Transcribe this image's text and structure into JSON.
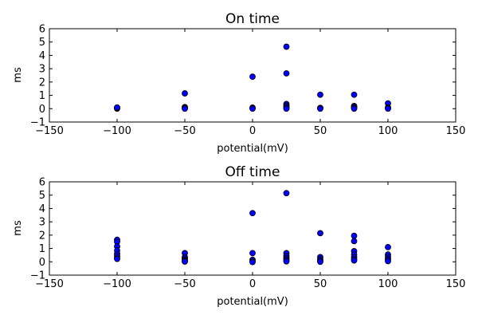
{
  "chart_data": [
    {
      "type": "scatter",
      "title": "On time",
      "xlabel": "potential(mV)",
      "ylabel": "ms",
      "xlim": [
        -150,
        150
      ],
      "ylim": [
        -1,
        6
      ],
      "xticks": [
        -150,
        -100,
        -50,
        0,
        50,
        100,
        150
      ],
      "yticks": [
        -1,
        0,
        1,
        2,
        3,
        4,
        5,
        6
      ],
      "xtick_labels": [
        "−150",
        "−100",
        "−50",
        "0",
        "50",
        "100",
        "150"
      ],
      "ytick_labels": [
        "−1",
        "0",
        "1",
        "2",
        "3",
        "4",
        "5",
        "6"
      ],
      "grid": false,
      "marker_color": "#0000ff",
      "points": [
        {
          "x": -100,
          "y": 0.0
        },
        {
          "x": -100,
          "y": 0.03
        },
        {
          "x": -100,
          "y": 0.06
        },
        {
          "x": -100,
          "y": 0.09
        },
        {
          "x": -50,
          "y": 1.15
        },
        {
          "x": -50,
          "y": 0.12
        },
        {
          "x": -50,
          "y": 0.08
        },
        {
          "x": -50,
          "y": 0.04
        },
        {
          "x": -50,
          "y": 0.0
        },
        {
          "x": 0,
          "y": 2.4
        },
        {
          "x": 0,
          "y": 0.08
        },
        {
          "x": 0,
          "y": 0.04
        },
        {
          "x": 0,
          "y": 0.0
        },
        {
          "x": 25,
          "y": 4.65
        },
        {
          "x": 25,
          "y": 2.65
        },
        {
          "x": 25,
          "y": 0.35
        },
        {
          "x": 25,
          "y": 0.25
        },
        {
          "x": 25,
          "y": 0.15
        },
        {
          "x": 25,
          "y": 0.05
        },
        {
          "x": 25,
          "y": 0.0
        },
        {
          "x": 50,
          "y": 1.05
        },
        {
          "x": 50,
          "y": 0.06
        },
        {
          "x": 50,
          "y": 0.03
        },
        {
          "x": 50,
          "y": 0.0
        },
        {
          "x": 75,
          "y": 1.05
        },
        {
          "x": 75,
          "y": 0.2
        },
        {
          "x": 75,
          "y": 0.12
        },
        {
          "x": 75,
          "y": 0.06
        },
        {
          "x": 75,
          "y": 0.0
        },
        {
          "x": 100,
          "y": 0.4
        },
        {
          "x": 100,
          "y": 0.1
        },
        {
          "x": 100,
          "y": 0.05
        },
        {
          "x": 100,
          "y": 0.0
        }
      ]
    },
    {
      "type": "scatter",
      "title": "Off time",
      "xlabel": "potential(mV)",
      "ylabel": "ms",
      "xlim": [
        -150,
        150
      ],
      "ylim": [
        -1,
        6
      ],
      "xticks": [
        -150,
        -100,
        -50,
        0,
        50,
        100,
        150
      ],
      "yticks": [
        -1,
        0,
        1,
        2,
        3,
        4,
        5,
        6
      ],
      "xtick_labels": [
        "−150",
        "−100",
        "−50",
        "0",
        "50",
        "100",
        "150"
      ],
      "ytick_labels": [
        "−1",
        "0",
        "1",
        "2",
        "3",
        "4",
        "5",
        "6"
      ],
      "grid": false,
      "marker_color": "#0000ff",
      "points": [
        {
          "x": -100,
          "y": 1.65
        },
        {
          "x": -100,
          "y": 1.5
        },
        {
          "x": -100,
          "y": 1.15
        },
        {
          "x": -100,
          "y": 0.85
        },
        {
          "x": -100,
          "y": 0.6
        },
        {
          "x": -100,
          "y": 0.45
        },
        {
          "x": -100,
          "y": 0.3
        },
        {
          "x": -100,
          "y": 0.22
        },
        {
          "x": -50,
          "y": 0.65
        },
        {
          "x": -50,
          "y": 0.35
        },
        {
          "x": -50,
          "y": 0.25
        },
        {
          "x": -50,
          "y": 0.15
        },
        {
          "x": -50,
          "y": 0.08
        },
        {
          "x": -50,
          "y": 0.02
        },
        {
          "x": 0,
          "y": 3.65
        },
        {
          "x": 0,
          "y": 0.65
        },
        {
          "x": 0,
          "y": 0.15
        },
        {
          "x": 0,
          "y": 0.05
        },
        {
          "x": 0,
          "y": -0.02
        },
        {
          "x": 25,
          "y": 5.15
        },
        {
          "x": 25,
          "y": 0.65
        },
        {
          "x": 25,
          "y": 0.45
        },
        {
          "x": 25,
          "y": 0.3
        },
        {
          "x": 25,
          "y": 0.2
        },
        {
          "x": 25,
          "y": 0.1
        },
        {
          "x": 25,
          "y": 0.03
        },
        {
          "x": 50,
          "y": 2.15
        },
        {
          "x": 50,
          "y": 0.35
        },
        {
          "x": 50,
          "y": 0.2
        },
        {
          "x": 50,
          "y": 0.08
        },
        {
          "x": 50,
          "y": 0.0
        },
        {
          "x": 75,
          "y": 1.95
        },
        {
          "x": 75,
          "y": 1.55
        },
        {
          "x": 75,
          "y": 0.8
        },
        {
          "x": 75,
          "y": 0.55
        },
        {
          "x": 75,
          "y": 0.35
        },
        {
          "x": 75,
          "y": 0.2
        },
        {
          "x": 75,
          "y": 0.1
        },
        {
          "x": 100,
          "y": 1.1
        },
        {
          "x": 100,
          "y": 0.55
        },
        {
          "x": 100,
          "y": 0.4
        },
        {
          "x": 100,
          "y": 0.25
        },
        {
          "x": 100,
          "y": 0.15
        },
        {
          "x": 100,
          "y": 0.05
        }
      ]
    }
  ]
}
